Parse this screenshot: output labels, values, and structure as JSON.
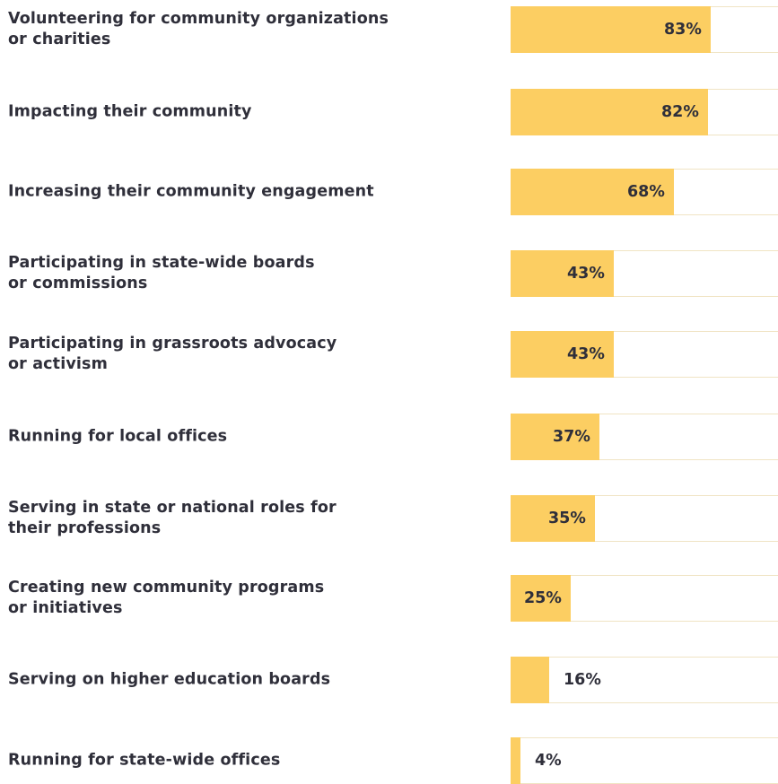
{
  "chart_data": {
    "type": "bar",
    "orientation": "horizontal",
    "value_unit": "%",
    "xlim": [
      0,
      100
    ],
    "bar_color": "#fcce62",
    "grid": false,
    "categories": [
      "Volunteering for community organizations\nor charities",
      "Impacting their community",
      "Increasing their community engagement",
      "Participating in state-wide boards\nor commissions",
      "Participating in grassroots advocacy\nor activism",
      "Running for local offices",
      "Serving in state or national roles for\ntheir professions",
      "Creating new community programs\nor initiatives",
      "Serving on higher education boards",
      "Running for state-wide offices"
    ],
    "values": [
      83,
      82,
      68,
      43,
      43,
      37,
      35,
      25,
      16,
      4
    ],
    "value_labels": [
      "83%",
      "82%",
      "68%",
      "43%",
      "43%",
      "37%",
      "35%",
      "25%",
      "16%",
      "4%"
    ]
  }
}
